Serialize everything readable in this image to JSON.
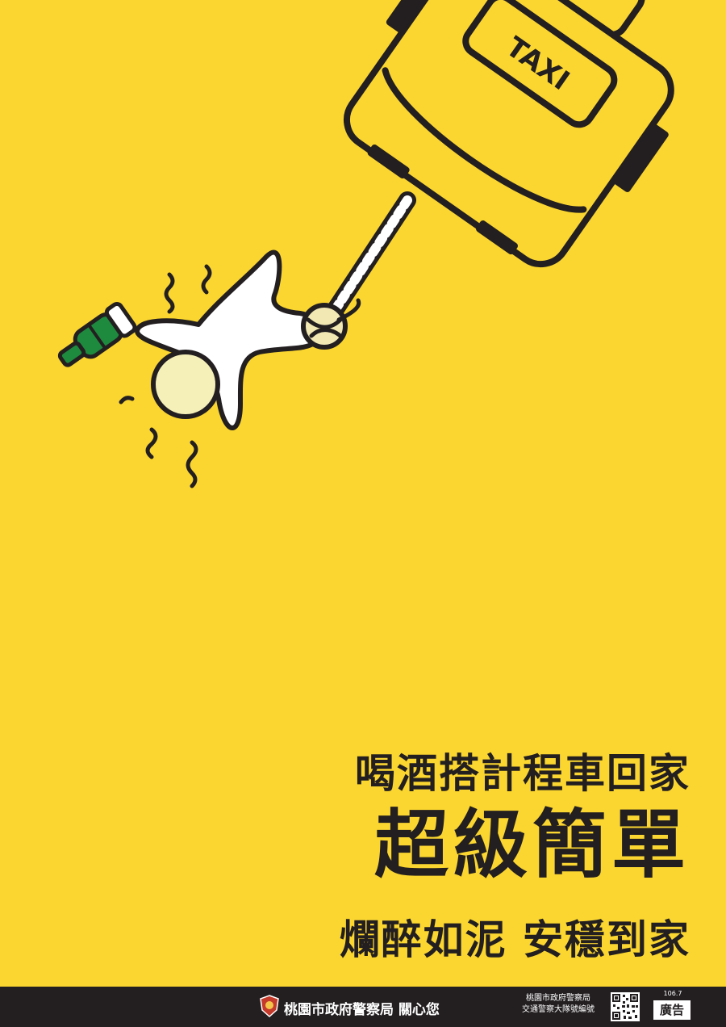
{
  "illustration": {
    "taxi_sign": "TAXI",
    "colors": {
      "background": "#fbd630",
      "outline": "#231f20",
      "figure": "#ffffff",
      "head": "#f5f0b8",
      "bottle": "#1e8a3e"
    }
  },
  "headline": {
    "line1": "喝酒搭計程車回家",
    "line2": "超級簡單",
    "line3": "爛醉如泥 安穩到家"
  },
  "footer": {
    "badge_icon": "police-badge-icon",
    "org": "桃園市政府警察局",
    "care": "關心您",
    "publisher_line1": "桃園市政府警察局",
    "publisher_line2": "交通警察大隊號編號",
    "qr_icon": "qr-code-icon",
    "code": "106.7",
    "ad_label": "廣告",
    "colors": {
      "bar": "#231f20",
      "text": "#ffffff"
    }
  }
}
